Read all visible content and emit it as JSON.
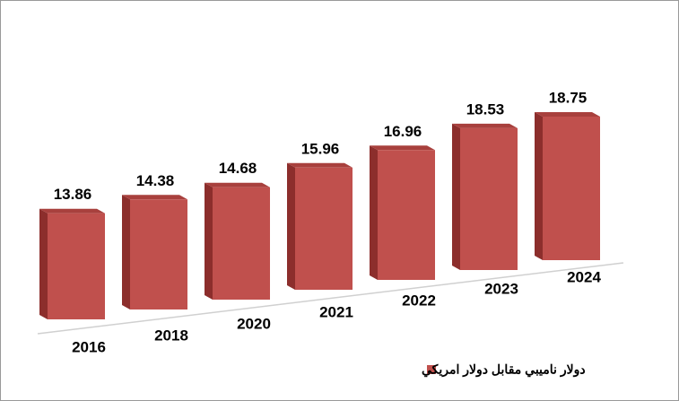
{
  "chart_data": {
    "type": "bar3d",
    "categories": [
      "2016",
      "2018",
      "2020",
      "2021",
      "2022",
      "2023",
      "2024"
    ],
    "series": [
      {
        "name": "دولار ناميبي مقابل دولار امريكي",
        "color": "#c0504d",
        "values": [
          13.86,
          14.38,
          14.68,
          15.96,
          16.96,
          18.53,
          18.75
        ]
      }
    ]
  }
}
